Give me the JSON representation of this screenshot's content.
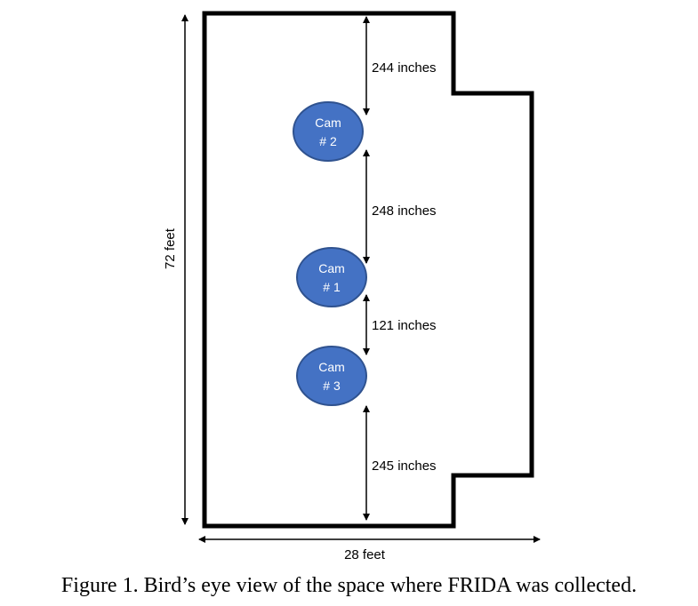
{
  "floorplan": {
    "dimensions": {
      "height_label": "72 feet",
      "width_label": "28 feet"
    },
    "cameras": [
      {
        "line1": "Cam",
        "line2": "# 2"
      },
      {
        "line1": "Cam",
        "line2": "# 1"
      },
      {
        "line1": "Cam",
        "line2": "# 3"
      }
    ],
    "distances": [
      "244 inches",
      "248 inches",
      "121 inches",
      "245 inches"
    ],
    "colors": {
      "camera_fill": "#4472C4",
      "camera_stroke": "#2F528F",
      "wall": "#000000"
    }
  },
  "caption": "Figure 1. Bird’s eye view of the space where FRIDA was collected."
}
